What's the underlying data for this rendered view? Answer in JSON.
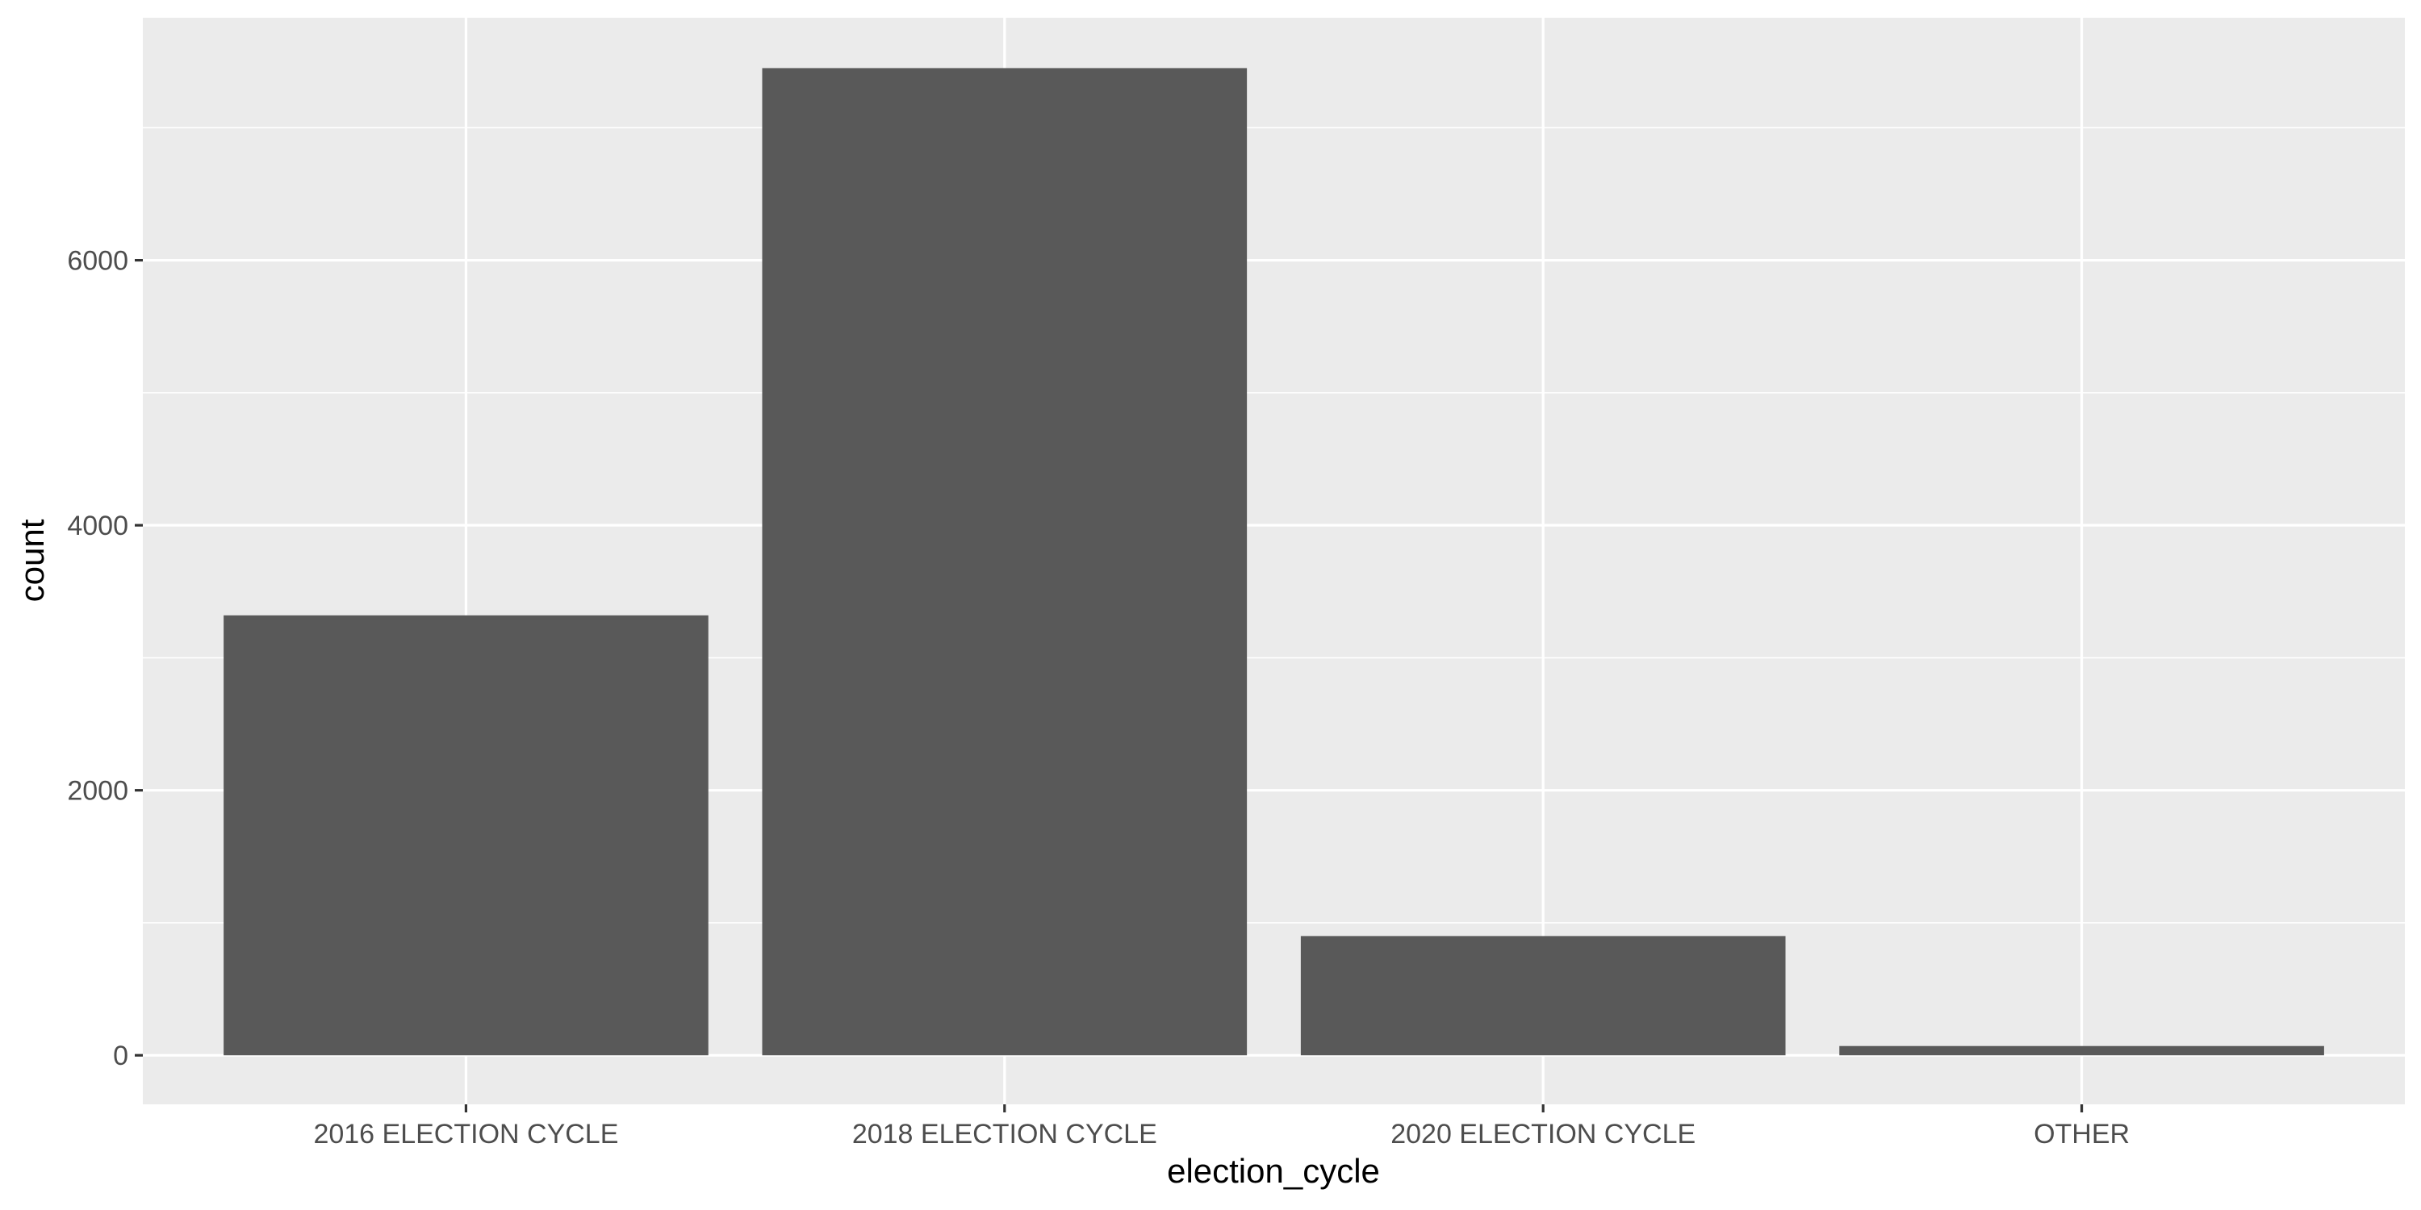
{
  "chart_data": {
    "type": "bar",
    "categories": [
      "2016 ELECTION CYCLE",
      "2018 ELECTION CYCLE",
      "2020 ELECTION CYCLE",
      "OTHER"
    ],
    "values": [
      3320,
      7450,
      900,
      70
    ],
    "xlabel": "election_cycle",
    "ylabel": "count",
    "ylim": [
      -370,
      7830
    ],
    "yticks": [
      0,
      2000,
      4000,
      6000
    ],
    "yticks_labels": [
      "0",
      "2000",
      "4000",
      "6000"
    ],
    "grid": true,
    "legend": "none",
    "colors": {
      "bar": "#595959",
      "panel": "#ebebeb",
      "grid": "#ffffff",
      "tick": "#333333"
    }
  }
}
